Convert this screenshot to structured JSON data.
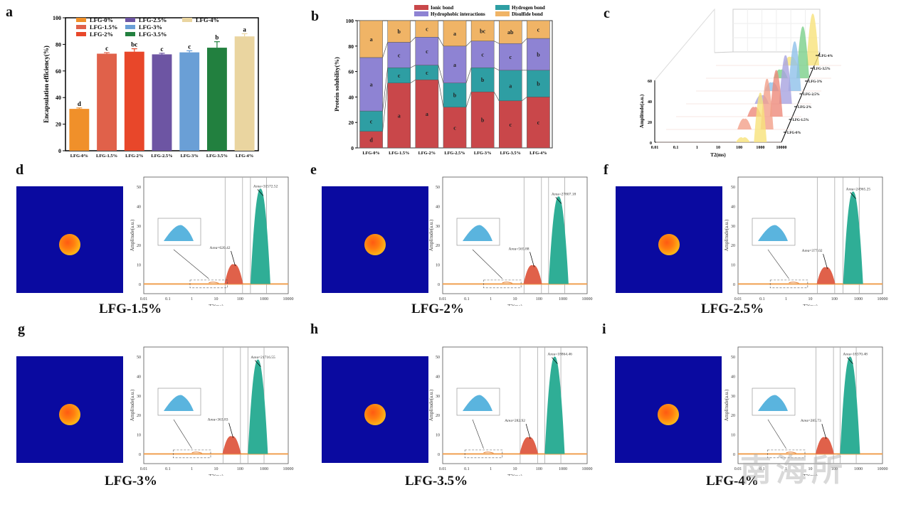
{
  "panels": {
    "a": "a",
    "b": "b",
    "c": "c",
    "d": "d",
    "e": "e",
    "f": "f",
    "g": "g",
    "h": "h",
    "i": "i"
  },
  "chart_data": [
    {
      "id": "a",
      "type": "bar",
      "title": "",
      "xlabel": "",
      "ylabel": "Encapsulation efficiency(%)",
      "ylim": [
        0,
        100
      ],
      "yticks": [
        0,
        20,
        40,
        60,
        80,
        100
      ],
      "categories": [
        "LFG-0%",
        "LFG-1.5%",
        "LFG-2%",
        "LFG-2.5%",
        "LFG-3%",
        "LFG-3.5%",
        "LFG-4%"
      ],
      "values": [
        31.5,
        73,
        74.5,
        72.5,
        74,
        77.5,
        86
      ],
      "errors": [
        0.7,
        0.8,
        2.2,
        0.8,
        1.2,
        4.5,
        2.0
      ],
      "letters": [
        "d",
        "c",
        "bc",
        "c",
        "c",
        "b",
        "a"
      ],
      "colors": [
        "#f0902a",
        "#e0614a",
        "#e8472a",
        "#6d55a3",
        "#6a9fd6",
        "#22803f",
        "#ead5a0"
      ],
      "legend": [
        "LFG-0%",
        "LFG-1.5%",
        "LFG-2%",
        "LFG-2.5%",
        "LFG-3%",
        "LFG-3.5%",
        "LFG-4%"
      ],
      "legend_position": "top"
    },
    {
      "id": "b",
      "type": "bar",
      "stacked": true,
      "ylabel": "Protein solubility(%)",
      "ylim": [
        0,
        100
      ],
      "yticks": [
        0,
        20,
        40,
        60,
        80,
        100
      ],
      "categories": [
        "LFG-0%",
        "LFG-1.5%",
        "LFG-2%",
        "LFG-2.5%",
        "LFG-3%",
        "LFG-3.5%",
        "LFG-4%"
      ],
      "series": [
        {
          "name": "Ionic bond",
          "color": "#c9474a",
          "values": [
            13,
            51,
            53.5,
            32,
            44,
            37,
            40
          ],
          "letters": [
            "d",
            "a",
            "a",
            "c",
            "b",
            "c",
            "c"
          ]
        },
        {
          "name": "Hydrogen bond",
          "color": "#2e9ea3",
          "values": [
            16,
            12,
            11.5,
            19,
            19,
            24,
            21
          ],
          "letters": [
            "c",
            "c",
            "c",
            "b",
            "b",
            "a",
            "b"
          ]
        },
        {
          "name": "Hydrophobic interactions",
          "color": "#8e83d3",
          "values": [
            42,
            20,
            22,
            29,
            21,
            21,
            25
          ],
          "letters": [
            "a",
            "c",
            "c",
            "a",
            "c",
            "c",
            "b"
          ]
        },
        {
          "name": "Disulfide bond",
          "color": "#f0b466",
          "values": [
            29,
            17,
            13,
            20,
            16,
            18,
            14
          ],
          "letters": [
            "a",
            "b",
            "c",
            "a",
            "bc",
            "ab",
            "c"
          ]
        }
      ],
      "legend_position": "top"
    },
    {
      "id": "c",
      "type": "area",
      "projection": "3d-waterfall",
      "xlabel": "T2(ms)",
      "ylabel": "Amplitude(a.u.)",
      "xscale": "log",
      "xticks": [
        "0.01",
        "0.1",
        "1",
        "10",
        "100",
        "1000",
        "10000"
      ],
      "ylim": [
        0,
        60
      ],
      "yticks": [
        0,
        20,
        40,
        60
      ],
      "series": [
        {
          "name": "LFG-0%",
          "color": "#f7e27a",
          "peaks": [
            {
              "t2": 150,
              "amp": 4
            },
            {
              "t2": 1000,
              "amp": 48
            }
          ]
        },
        {
          "name": "LFG-1.5%",
          "color": "#f2a08a",
          "peaks": [
            {
              "t2": 60,
              "amp": 10
            },
            {
              "t2": 700,
              "amp": 49
            }
          ]
        },
        {
          "name": "LFG-2%",
          "color": "#ee8a7a",
          "peaks": [
            {
              "t2": 60,
              "amp": 9
            },
            {
              "t2": 650,
              "amp": 45
            }
          ]
        },
        {
          "name": "LFG-2.5%",
          "color": "#a8a2e0",
          "peaks": [
            {
              "t2": 45,
              "amp": 8
            },
            {
              "t2": 600,
              "amp": 47
            }
          ]
        },
        {
          "name": "LFG-3%",
          "color": "#8fc0ea",
          "peaks": [
            {
              "t2": 45,
              "amp": 8
            },
            {
              "t2": 550,
              "amp": 48
            }
          ]
        },
        {
          "name": "LFG-3.5%",
          "color": "#7ad08a",
          "peaks": [
            {
              "t2": 40,
              "amp": 8
            },
            {
              "t2": 450,
              "amp": 50
            }
          ]
        },
        {
          "name": "LFG-4%",
          "color": "#f7e27a",
          "peaks": [
            {
              "t2": 40,
              "amp": 8
            },
            {
              "t2": 450,
              "amp": 50
            }
          ]
        }
      ]
    },
    {
      "id": "d",
      "type": "area",
      "sample": "LFG-1.5%",
      "xlabel": "T2(ms)",
      "ylabel": "Amplitude(a.u.)",
      "xscale": "log",
      "xticks": [
        "0.01",
        "0.1",
        "1",
        "10",
        "100",
        "1000",
        "10000"
      ],
      "ylim": [
        -5,
        55
      ],
      "yticks": [
        0,
        10,
        20,
        30,
        40,
        50
      ],
      "peaks": [
        {
          "t2": 55,
          "amp": 10,
          "area": "Area=620.42",
          "color": "#e0614a"
        },
        {
          "t2": 700,
          "amp": 49,
          "area": "Area=31572.52",
          "color": "#2fae96"
        }
      ],
      "small_peak": {
        "t2": 5,
        "amp": 0.4
      }
    },
    {
      "id": "e",
      "type": "area",
      "sample": "LFG-2%",
      "xlabel": "T2(ms)",
      "ylabel": "Amplitude(a.u.)",
      "xscale": "log",
      "xticks": [
        "0.01",
        "0.1",
        "1",
        "10",
        "100",
        "1000",
        "10000"
      ],
      "ylim": [
        -5,
        55
      ],
      "yticks": [
        0,
        10,
        20,
        30,
        40,
        50
      ],
      "peaks": [
        {
          "t2": 55,
          "amp": 9.5,
          "area": "Area=565.88",
          "color": "#e0614a"
        },
        {
          "t2": 650,
          "amp": 45,
          "area": "Area=27807.18",
          "color": "#2fae96"
        }
      ],
      "small_peak": {
        "t2": 3,
        "amp": 0.4
      }
    },
    {
      "id": "f",
      "type": "area",
      "sample": "LFG-2.5%",
      "xlabel": "T2(ms)",
      "ylabel": "Amplitude(a.u.)",
      "xscale": "log",
      "xticks": [
        "0.01",
        "0.1",
        "1",
        "10",
        "100",
        "1000",
        "10000"
      ],
      "ylim": [
        -5,
        55
      ],
      "yticks": [
        0,
        10,
        20,
        30,
        40,
        50
      ],
      "peaks": [
        {
          "t2": 45,
          "amp": 8.5,
          "area": "Area=377.02",
          "color": "#e0614a"
        },
        {
          "t2": 600,
          "amp": 47.5,
          "area": "Area=24965.25",
          "color": "#2fae96"
        }
      ],
      "small_peak": {
        "t2": 1.3,
        "amp": 0.4
      }
    },
    {
      "id": "g",
      "type": "area",
      "sample": "LFG-3%",
      "xlabel": "T2(ms)",
      "ylabel": "Amplitude(a.u.)",
      "xscale": "log",
      "xticks": [
        "0.01",
        "0.1",
        "1",
        "10",
        "100",
        "1000",
        "10000"
      ],
      "ylim": [
        -5,
        55
      ],
      "yticks": [
        0,
        10,
        20,
        30,
        40,
        50
      ],
      "peaks": [
        {
          "t2": 45,
          "amp": 9,
          "area": "Area=363.83",
          "color": "#e0614a"
        },
        {
          "t2": 550,
          "amp": 48.5,
          "area": "Area=21716.55",
          "color": "#2fae96"
        }
      ],
      "small_peak": {
        "t2": 1,
        "amp": 0.4
      }
    },
    {
      "id": "h",
      "type": "area",
      "sample": "LFG-3.5%",
      "xlabel": "T2(ms)",
      "ylabel": "Amplitude(a.u.)",
      "xscale": "log",
      "xticks": [
        "0.01",
        "0.1",
        "1",
        "10",
        "100",
        "1000",
        "10000"
      ],
      "ylim": [
        -5,
        55
      ],
      "yticks": [
        0,
        10,
        20,
        30,
        40,
        50
      ],
      "peaks": [
        {
          "t2": 38,
          "amp": 8.5,
          "area": "Area=282.92",
          "color": "#e0614a"
        },
        {
          "t2": 450,
          "amp": 50,
          "area": "Area=18864.46",
          "color": "#2fae96"
        }
      ],
      "small_peak": {
        "t2": 0.5,
        "amp": 0.4
      }
    },
    {
      "id": "i",
      "type": "area",
      "sample": "LFG-4%",
      "xlabel": "T2(ms)",
      "ylabel": "Amplitude(a.u.)",
      "xscale": "log",
      "xticks": [
        "0.01",
        "0.1",
        "1",
        "10",
        "100",
        "1000",
        "10000"
      ],
      "ylim": [
        -5,
        55
      ],
      "yticks": [
        0,
        10,
        20,
        30,
        40,
        50
      ],
      "peaks": [
        {
          "t2": 40,
          "amp": 8.5,
          "area": "Area=285.73",
          "color": "#e0614a"
        },
        {
          "t2": 450,
          "amp": 50,
          "area": "Area=18370.48",
          "color": "#2fae96"
        }
      ],
      "small_peak": {
        "t2": 1,
        "amp": 0.4
      }
    }
  ],
  "samples": {
    "d": "LFG-1.5%",
    "e": "LFG-2%",
    "f": "LFG-2.5%",
    "g": "LFG-3%",
    "h": "LFG-3.5%",
    "i": "LFG-4%"
  },
  "watermark": "南海所"
}
